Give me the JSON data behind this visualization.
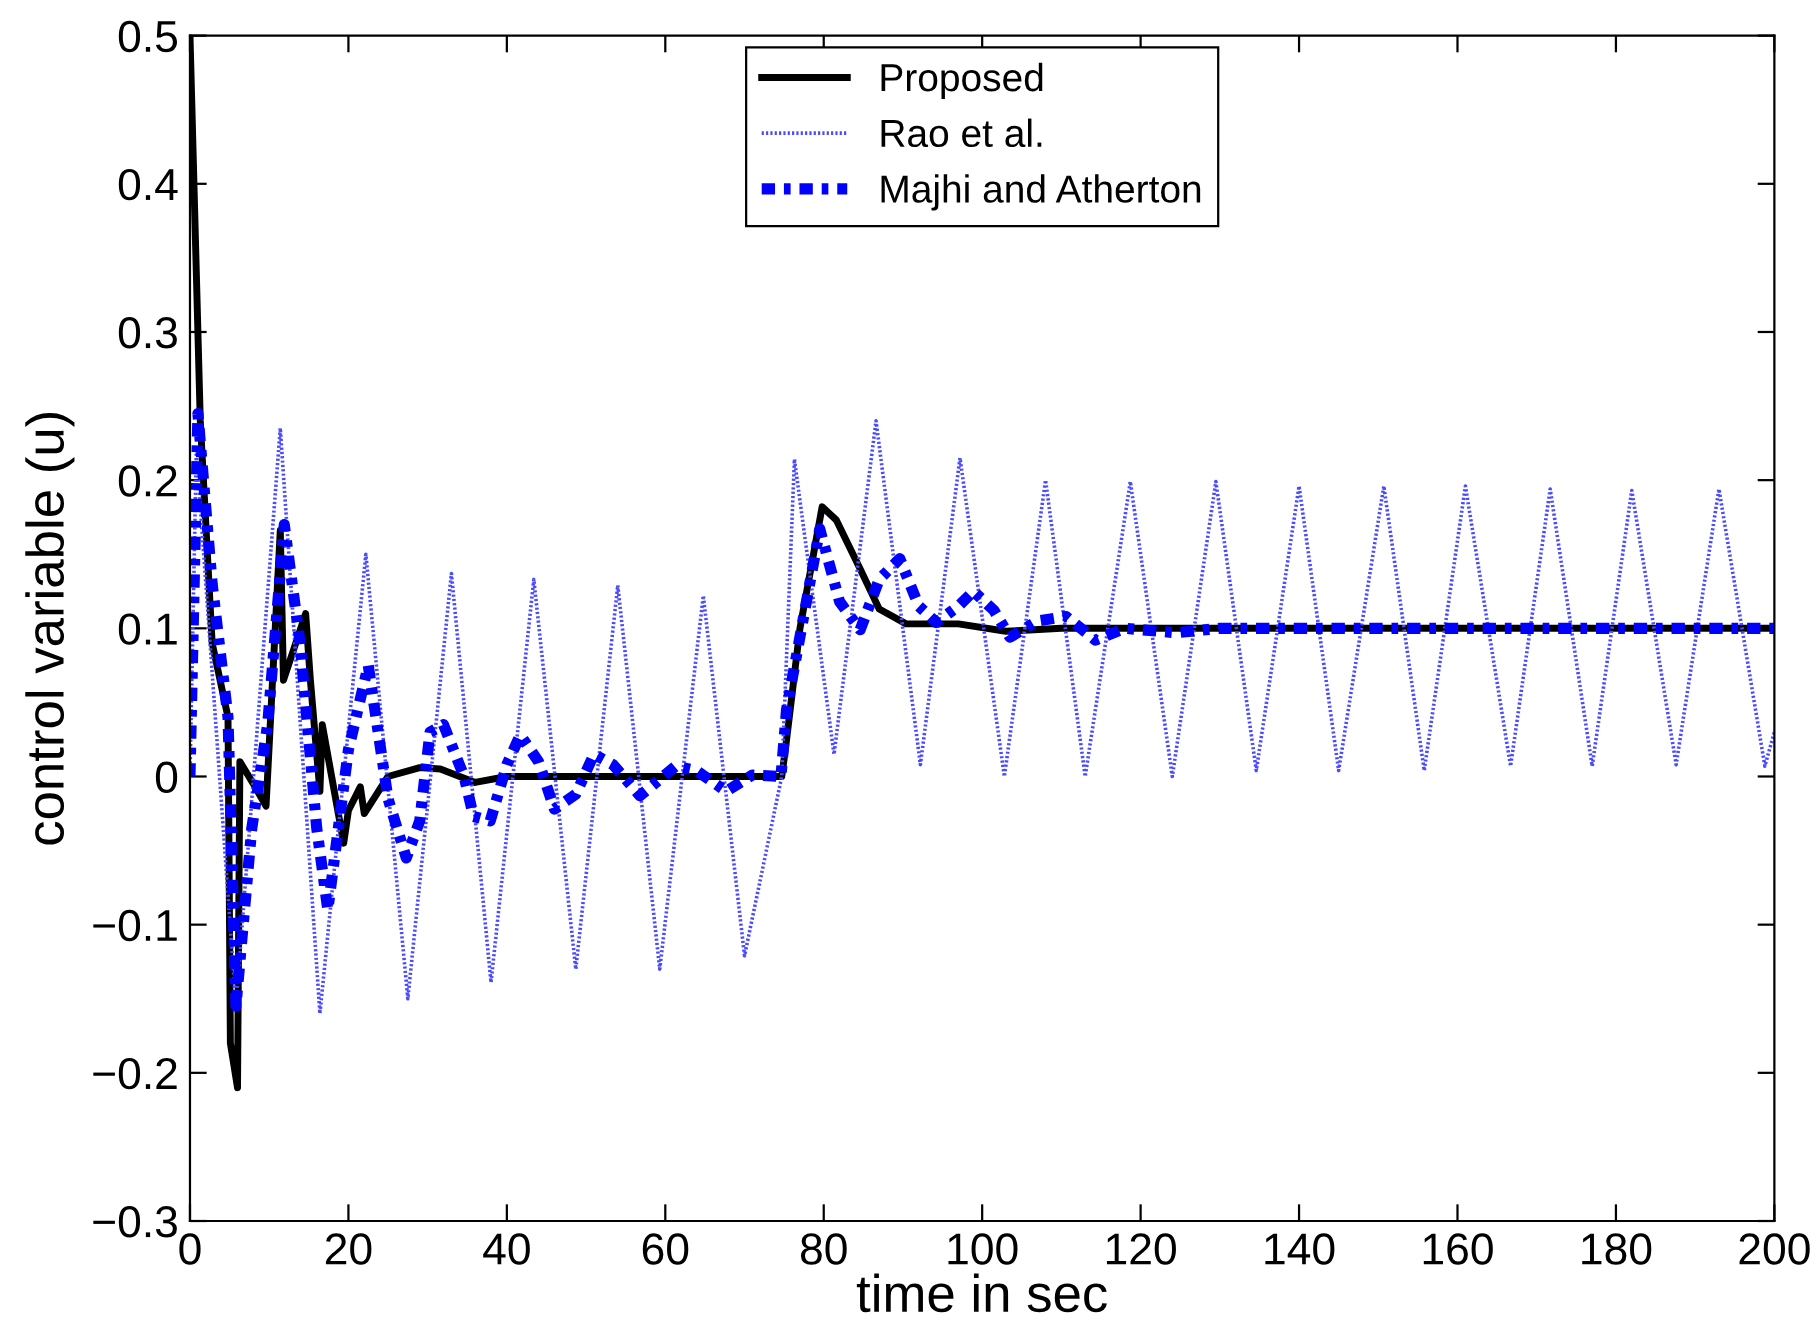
{
  "chart_data": {
    "type": "line",
    "xlabel": "time in sec",
    "ylabel": "control variable (u)",
    "xlim": [
      0,
      200
    ],
    "xticks": [
      0,
      20,
      40,
      60,
      80,
      100,
      120,
      140,
      160,
      180,
      200
    ],
    "ylim": [
      -0.3,
      0.5
    ],
    "yticks": [
      {
        "value": -0.3,
        "label": "−0.3"
      },
      {
        "value": -0.2,
        "label": "−0.2"
      },
      {
        "value": -0.1,
        "label": "−0.1"
      },
      0,
      0.1,
      0.2,
      0.3,
      0.4,
      0.5
    ],
    "grid": false,
    "legend": "top",
    "marker": "none",
    "series": [
      {
        "name": "Proposed",
        "color": "#000000",
        "line_style": "solid",
        "x": [
          0,
          1.3,
          2.8,
          4.8,
          5.1,
          6,
          6.3,
          8,
          9.6,
          11.4,
          11.8,
          14.6,
          15.2,
          16.4,
          16.7,
          19.4,
          20,
          21.5,
          22,
          25,
          29,
          31.6,
          36,
          40,
          74.7,
          75.2,
          77,
          79.8,
          81.6,
          84.6,
          87,
          90.4,
          97,
          103,
          110,
          200
        ],
        "values": [
          0.5,
          0.24,
          0.09,
          0.04,
          -0.18,
          -0.21,
          0.01,
          -0.005,
          -0.02,
          0.166,
          0.065,
          0.11,
          0.065,
          -0.01,
          0.035,
          -0.045,
          -0.023,
          -0.007,
          -0.025,
          0.0,
          0.006,
          0.005,
          -0.004,
          0,
          0,
          0.02,
          0.1,
          0.182,
          0.173,
          0.14,
          0.113,
          0.103,
          0.103,
          0.098,
          0.1,
          0.1
        ]
      },
      {
        "name": "Rao et al.",
        "color": "#4a4aff",
        "line_style": "dotted",
        "x": [
          0,
          0.8,
          5.8,
          11.4,
          16.4,
          22.2,
          27.5,
          33,
          38,
          43.4,
          48.7,
          54,
          59.3,
          64.8,
          70,
          74.7,
          76.3,
          81.3,
          86.6,
          92.2,
          97.2,
          102.8,
          108,
          113,
          118.7,
          124,
          129.5,
          134.6,
          140,
          145,
          150.7,
          155.8,
          161,
          166.7,
          171.7,
          177,
          182,
          187.6,
          193,
          198.8,
          200
        ],
        "values": [
          0,
          0.22,
          -0.155,
          0.235,
          -0.16,
          0.15,
          -0.15,
          0.137,
          -0.139,
          0.133,
          -0.13,
          0.129,
          -0.13,
          0.122,
          -0.121,
          0.0,
          0.214,
          0.015,
          0.24,
          0.008,
          0.215,
          0.0,
          0.2,
          0.0,
          0.199,
          0.0,
          0.199,
          0.004,
          0.196,
          0.004,
          0.196,
          0.004,
          0.196,
          0.007,
          0.194,
          0.007,
          0.193,
          0.008,
          0.194,
          0.007,
          0.03
        ]
      },
      {
        "name": "Majhi and Atherton",
        "color": "#0000ff",
        "line_style": "dashed",
        "x": [
          0,
          1,
          2.8,
          4.8,
          5.8,
          7.8,
          9.8,
          11.9,
          13.9,
          16,
          17.4,
          20,
          22.5,
          25,
          27.3,
          29,
          30.3,
          32,
          34.6,
          35.8,
          37.9,
          40,
          41.7,
          44,
          46,
          48.7,
          51,
          53.4,
          56.8,
          61.3,
          63.9,
          67.7,
          71,
          74.6,
          75.3,
          79.5,
          82,
          84.6,
          87,
          89.6,
          92,
          94.2,
          97,
          98.9,
          101.5,
          103.5,
          107,
          110.6,
          114.3,
          118,
          124.5,
          130,
          200
        ],
        "values": [
          0,
          0.245,
          0.13,
          0.04,
          -0.155,
          -0.035,
          0.035,
          0.17,
          0.09,
          -0.035,
          -0.09,
          0.018,
          0.075,
          -0.015,
          -0.055,
          -0.03,
          0.03,
          0.035,
          0.0,
          -0.027,
          -0.03,
          0.008,
          0.028,
          0.01,
          -0.022,
          -0.012,
          0.015,
          0.008,
          -0.013,
          0.007,
          0.004,
          -0.01,
          0.001,
          0,
          0.045,
          0.167,
          0.118,
          0.099,
          0.133,
          0.147,
          0.115,
          0.104,
          0.115,
          0.125,
          0.112,
          0.094,
          0.105,
          0.108,
          0.092,
          0.1,
          0.097,
          0.1,
          0.1
        ]
      }
    ]
  }
}
